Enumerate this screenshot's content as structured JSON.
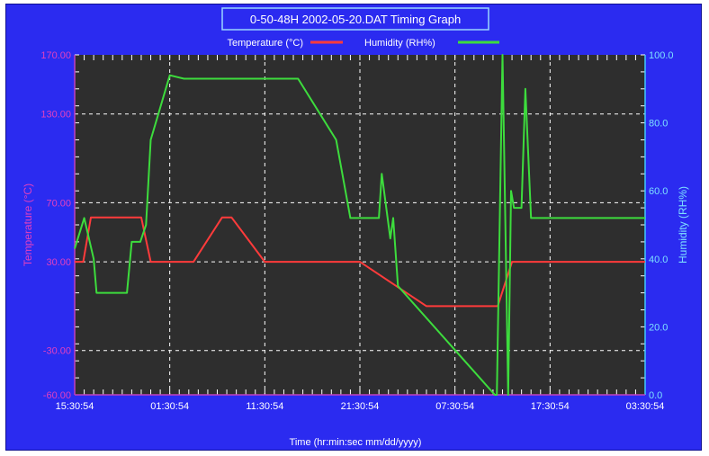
{
  "chart_data": {
    "type": "line",
    "title": "0-50-48H 2002-05-20.DAT Timing Graph",
    "xlabel": "Time (hr:min:sec mm/dd/yyyy)",
    "ylabel_left": "Temperature (°C)",
    "ylabel_right": "Humidity (RH%)",
    "y_left_ticks": [
      "170.00",
      "130.00",
      "70.00",
      "30.00",
      "-30.00",
      "-60.00"
    ],
    "y_left_values": [
      170,
      130,
      70,
      30,
      -30,
      -60
    ],
    "y_left_range": [
      -60,
      170
    ],
    "y_right_ticks": [
      "100.0",
      "80.0",
      "60.0",
      "40.0",
      "20.0",
      "0.0"
    ],
    "y_right_range": [
      0,
      100
    ],
    "x_ticks": [
      "15:30:54",
      "01:30:54",
      "11:30:54",
      "21:30:54",
      "07:30:54",
      "17:30:54",
      "03:30:54"
    ],
    "x_range_hours": [
      0,
      60
    ],
    "grid": true,
    "legend_position": "top",
    "series": [
      {
        "name": "Temperature (°C)",
        "color": "#ff3b3b",
        "axis": "left",
        "x": [
          0,
          0.9,
          1.7,
          7.0,
          8.0,
          11.5,
          12.5,
          15.5,
          16.5,
          20.0,
          23.0,
          28.5,
          30.0,
          37.0,
          38.5,
          44.5,
          46.0,
          60.0
        ],
        "values": [
          30,
          30,
          60,
          60,
          30,
          30,
          30,
          60,
          60,
          30,
          30,
          30,
          30,
          0,
          0,
          0,
          30,
          30
        ]
      },
      {
        "name": "Humidity (RH%)",
        "color": "#3ddc3d",
        "axis": "right",
        "x": [
          0,
          1.0,
          2.0,
          2.3,
          5.5,
          6.0,
          6.9,
          7.5,
          8.0,
          10.0,
          11.5,
          12.0,
          16.0,
          22.0,
          23.5,
          27.5,
          29.0,
          31.5,
          32.0,
          32.3,
          33.2,
          33.5,
          34.0,
          44.2,
          44.4,
          45.0,
          45.3,
          45.6,
          45.9,
          46.2,
          47.0,
          47.4,
          48.0,
          50.0,
          60.0
        ],
        "values": [
          43,
          52,
          40,
          30,
          30,
          45,
          45,
          50,
          75,
          94,
          93,
          93,
          93,
          93,
          93,
          75,
          52,
          52,
          52,
          65,
          46,
          52,
          32,
          0,
          0,
          100,
          50,
          0,
          60,
          55,
          55,
          90,
          52,
          52,
          52
        ]
      }
    ]
  }
}
